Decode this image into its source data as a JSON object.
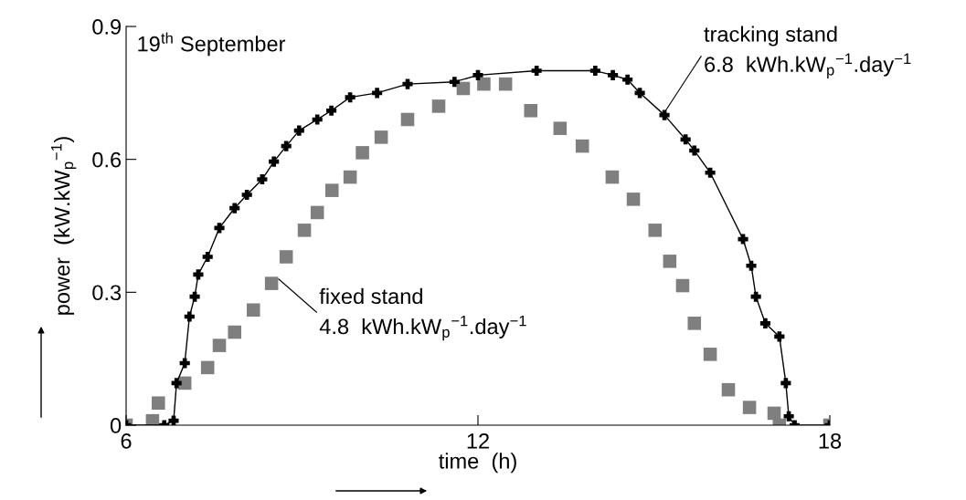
{
  "chart_data": {
    "type": "line",
    "xlabel": "time  (h)",
    "ylabel": "power  (kW.kW$_{p}$$^{−1}$)",
    "xlim": [
      6,
      18
    ],
    "xticks": [
      6,
      12,
      18
    ],
    "ylim": [
      0,
      0.9
    ],
    "yticks": [
      0,
      0.3,
      0.6,
      0.9
    ],
    "grid": false,
    "legend": false,
    "annotations": [
      "19$^{th}$ September",
      {
        "text": "tracking stand\n6.8  kWh.kW$_{p}$$^{−1}$.day$^{−1}$",
        "x": 15.2,
        "y": 0.71
      },
      {
        "text": "fixed stand\n4.8  kWh.kW$_{p}$$^{−1}$.day$^{−1}$",
        "x": 8.6,
        "y": 0.33
      }
    ],
    "series": [
      {
        "marker": "cross",
        "color": "#000000",
        "x": [
          6.0,
          6.65,
          6.81,
          6.86,
          7.0,
          7.08,
          7.17,
          7.23,
          7.39,
          7.59,
          7.85,
          8.06,
          8.32,
          8.52,
          8.73,
          8.95,
          9.26,
          9.5,
          9.82,
          10.28,
          10.8,
          11.6,
          12.0,
          13.0,
          14.0,
          14.3,
          14.55,
          14.76,
          15.18,
          15.54,
          15.69,
          15.96,
          16.52,
          16.66,
          16.74,
          16.9,
          17.14,
          17.25,
          17.3,
          17.4,
          18.0
        ],
        "values": [
          0,
          0,
          0.01,
          0.095,
          0.14,
          0.245,
          0.29,
          0.34,
          0.38,
          0.445,
          0.49,
          0.52,
          0.555,
          0.595,
          0.63,
          0.665,
          0.69,
          0.71,
          0.74,
          0.75,
          0.77,
          0.775,
          0.79,
          0.8,
          0.8,
          0.79,
          0.78,
          0.75,
          0.7,
          0.645,
          0.62,
          0.57,
          0.42,
          0.36,
          0.29,
          0.23,
          0.2,
          0.095,
          0.02,
          0,
          0
        ]
      },
      {
        "type": "scatter",
        "marker": "square",
        "color": "#7f7f7f",
        "x": [
          6.0,
          6.45,
          6.55,
          7.0,
          7.39,
          7.59,
          7.85,
          8.17,
          8.48,
          8.73,
          9.04,
          9.26,
          9.51,
          9.82,
          10.03,
          10.35,
          10.8,
          11.33,
          11.75,
          12.1,
          12.47,
          12.9,
          13.4,
          13.78,
          14.29,
          14.65,
          15.02,
          15.27,
          15.49,
          15.69,
          15.96,
          16.27,
          16.63,
          17.05,
          17.14,
          18.0
        ],
        "values": [
          0,
          0.01,
          0.05,
          0.095,
          0.13,
          0.18,
          0.21,
          0.26,
          0.32,
          0.38,
          0.44,
          0.48,
          0.53,
          0.56,
          0.615,
          0.65,
          0.69,
          0.72,
          0.76,
          0.77,
          0.77,
          0.71,
          0.67,
          0.63,
          0.56,
          0.51,
          0.44,
          0.37,
          0.315,
          0.23,
          0.16,
          0.08,
          0.04,
          0.027,
          0,
          0
        ]
      }
    ]
  }
}
